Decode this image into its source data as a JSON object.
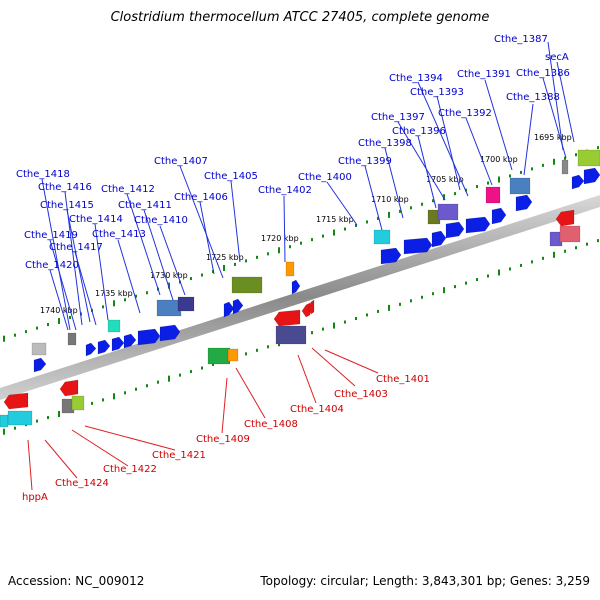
{
  "title": "Clostridium thermocellum ATCC 27405, complete genome",
  "accession": "Accession: NC_009012",
  "topology": "Topology: circular; Length: 3,843,301 bp; Genes: 3,259",
  "colors": {
    "forward_label": "#0000cc",
    "reverse_label": "#cc0000",
    "backbone": "#909090",
    "tick": "#118811",
    "gene_blue": "#0a1ee6",
    "gene_red": "#e61414"
  },
  "kbp_labels": [
    "1695 kbp",
    "1700 kbp",
    "1705 kbp",
    "1710 kbp",
    "1715 kbp",
    "1720 kbp",
    "1725 kbp",
    "1730 kbp",
    "1735 kbp",
    "1740 kbp"
  ],
  "forward_genes": [
    "Cthe_1387",
    "secA",
    "Cthe_1386",
    "Cthe_1391",
    "Cthe_1394",
    "Cthe_1393",
    "Cthe_1388",
    "Cthe_1392",
    "Cthe_1397",
    "Cthe_1396",
    "Cthe_1398",
    "Cthe_1399",
    "Cthe_1400",
    "Cthe_1402",
    "Cthe_1407",
    "Cthe_1406",
    "Cthe_1405",
    "Cthe_1418",
    "Cthe_1416",
    "Cthe_1415",
    "Cthe_1412",
    "Cthe_1411",
    "Cthe_1414",
    "Cthe_1410",
    "Cthe_1419",
    "Cthe_1413",
    "Cthe_1417",
    "Cthe_1420"
  ],
  "reverse_genes": [
    "Cthe_1401",
    "Cthe_1403",
    "Cthe_1404",
    "Cthe_1408",
    "Cthe_1409",
    "Cthe_1421",
    "Cthe_1422",
    "Cthe_1424",
    "hppA"
  ]
}
